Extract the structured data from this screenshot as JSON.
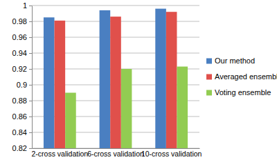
{
  "chart_data": {
    "type": "bar",
    "categories": [
      "2-cross validation",
      "6-cross validation",
      "10-cross validation"
    ],
    "series": [
      {
        "name": "Our method",
        "color": "#4a7fc1",
        "values": [
          0.985,
          0.994,
          0.996
        ]
      },
      {
        "name": "Averaged ensemble",
        "color": "#e0504b",
        "values": [
          0.981,
          0.986,
          0.992
        ]
      },
      {
        "name": "Voting ensemble",
        "color": "#92cc52",
        "values": [
          0.89,
          0.92,
          0.923
        ]
      }
    ],
    "ylim": [
      0.82,
      1
    ],
    "yticks": [
      0.82,
      0.84,
      0.86,
      0.88,
      0.9,
      0.92,
      0.94,
      0.96,
      0.98,
      1
    ],
    "grid": true,
    "legend": "right"
  }
}
